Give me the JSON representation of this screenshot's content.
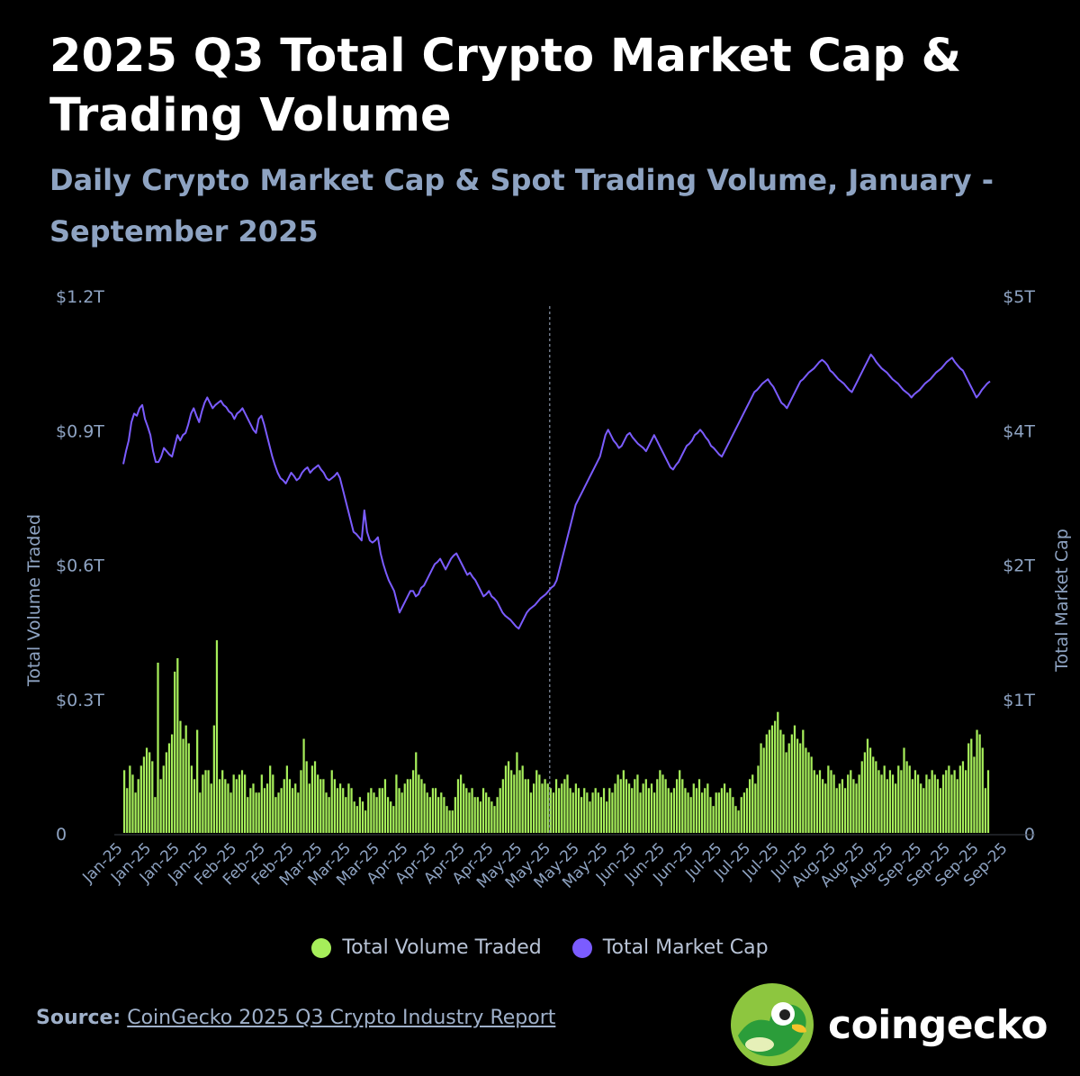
{
  "title": "2025 Q3 Total Crypto Market Cap & Trading Volume",
  "subtitle": "Daily Crypto Market Cap & Spot Trading Volume, January - September 2025",
  "source_label": "Source:",
  "source_text": "CoinGecko 2025 Q3 Crypto Industry Report",
  "brand": "coingecko",
  "colors": {
    "volume": "#a6ee5a",
    "market_cap": "#7b5cff",
    "axis_text": "#8ea3c2",
    "divider": "#8a96a8"
  },
  "chart_data": {
    "type": "bar+line",
    "x_tick_labels": [
      "Jan-25",
      "Jan-25",
      "Jan-25",
      "Jan-25",
      "Feb-25",
      "Feb-25",
      "Feb-25",
      "Mar-25",
      "Mar-25",
      "Mar-25",
      "Apr-25",
      "Apr-25",
      "Apr-25",
      "Apr-25",
      "May-25",
      "May-25",
      "May-25",
      "May-25",
      "Jun-25",
      "Jun-25",
      "Jun-25",
      "Jul-25",
      "Jul-25",
      "Jul-25",
      "Jul-25",
      "Aug-25",
      "Aug-25",
      "Aug-25",
      "Sep-25",
      "Sep-25",
      "Sep-25",
      "Sep-25"
    ],
    "y_left": {
      "label": "Total Volume Traded",
      "ticks": [
        "0",
        "$0.3T",
        "$0.6T",
        "$0.9T",
        "$1.2T"
      ],
      "range": [
        0,
        1.2
      ],
      "unit": "T USD"
    },
    "y_right": {
      "label": "Total Market Cap",
      "ticks": [
        "0",
        "$1T",
        "$2T",
        "$4T",
        "$5T"
      ],
      "range": [
        0,
        5
      ],
      "unit": "T USD"
    },
    "divider_label": "May-25",
    "legend": [
      "Total Volume Traded",
      "Total Market Cap"
    ],
    "series": [
      {
        "name": "Total Volume Traded",
        "type": "bar",
        "axis": "left",
        "values": [
          0.14,
          0.1,
          0.15,
          0.13,
          0.09,
          0.12,
          0.15,
          0.17,
          0.19,
          0.18,
          0.16,
          0.08,
          0.38,
          0.12,
          0.15,
          0.18,
          0.2,
          0.22,
          0.36,
          0.39,
          0.25,
          0.21,
          0.24,
          0.2,
          0.15,
          0.12,
          0.23,
          0.09,
          0.13,
          0.14,
          0.14,
          0.11,
          0.24,
          0.43,
          0.12,
          0.14,
          0.12,
          0.11,
          0.09,
          0.13,
          0.12,
          0.13,
          0.14,
          0.13,
          0.08,
          0.1,
          0.11,
          0.09,
          0.09,
          0.13,
          0.1,
          0.11,
          0.15,
          0.13,
          0.08,
          0.09,
          0.1,
          0.12,
          0.15,
          0.12,
          0.1,
          0.11,
          0.09,
          0.14,
          0.21,
          0.16,
          0.11,
          0.15,
          0.16,
          0.13,
          0.12,
          0.12,
          0.09,
          0.08,
          0.14,
          0.12,
          0.1,
          0.11,
          0.1,
          0.08,
          0.11,
          0.1,
          0.07,
          0.06,
          0.08,
          0.07,
          0.05,
          0.09,
          0.1,
          0.09,
          0.08,
          0.1,
          0.1,
          0.12,
          0.08,
          0.07,
          0.06,
          0.13,
          0.1,
          0.09,
          0.11,
          0.12,
          0.12,
          0.14,
          0.18,
          0.13,
          0.12,
          0.11,
          0.09,
          0.08,
          0.1,
          0.1,
          0.08,
          0.09,
          0.08,
          0.06,
          0.05,
          0.05,
          0.08,
          0.12,
          0.13,
          0.11,
          0.1,
          0.09,
          0.1,
          0.08,
          0.08,
          0.07,
          0.1,
          0.09,
          0.08,
          0.07,
          0.06,
          0.08,
          0.1,
          0.12,
          0.15,
          0.16,
          0.14,
          0.13,
          0.18,
          0.14,
          0.15,
          0.12,
          0.12,
          0.09,
          0.11,
          0.14,
          0.13,
          0.11,
          0.12,
          0.11,
          0.1,
          0.09,
          0.12,
          0.1,
          0.11,
          0.12,
          0.13,
          0.1,
          0.09,
          0.11,
          0.1,
          0.08,
          0.1,
          0.09,
          0.07,
          0.09,
          0.1,
          0.09,
          0.08,
          0.1,
          0.07,
          0.1,
          0.09,
          0.11,
          0.13,
          0.12,
          0.14,
          0.12,
          0.11,
          0.1,
          0.12,
          0.13,
          0.09,
          0.11,
          0.12,
          0.1,
          0.11,
          0.09,
          0.12,
          0.14,
          0.13,
          0.12,
          0.1,
          0.09,
          0.1,
          0.12,
          0.14,
          0.12,
          0.1,
          0.09,
          0.08,
          0.11,
          0.1,
          0.12,
          0.09,
          0.1,
          0.11,
          0.08,
          0.06,
          0.09,
          0.09,
          0.1,
          0.11,
          0.09,
          0.1,
          0.08,
          0.06,
          0.05,
          0.08,
          0.09,
          0.1,
          0.12,
          0.13,
          0.11,
          0.15,
          0.2,
          0.19,
          0.22,
          0.23,
          0.24,
          0.25,
          0.27,
          0.23,
          0.22,
          0.18,
          0.2,
          0.22,
          0.24,
          0.21,
          0.2,
          0.23,
          0.19,
          0.18,
          0.17,
          0.14,
          0.13,
          0.14,
          0.12,
          0.11,
          0.15,
          0.14,
          0.13,
          0.1,
          0.11,
          0.12,
          0.1,
          0.13,
          0.14,
          0.12,
          0.11,
          0.13,
          0.16,
          0.18,
          0.21,
          0.19,
          0.17,
          0.16,
          0.14,
          0.13,
          0.15,
          0.12,
          0.14,
          0.13,
          0.11,
          0.15,
          0.14,
          0.19,
          0.16,
          0.15,
          0.12,
          0.14,
          0.13,
          0.11,
          0.1,
          0.13,
          0.12,
          0.14,
          0.13,
          0.12,
          0.1,
          0.13,
          0.14,
          0.15,
          0.13,
          0.14,
          0.12,
          0.15,
          0.16,
          0.14,
          0.2,
          0.21,
          0.17,
          0.23,
          0.22,
          0.19,
          0.1,
          0.14
        ],
        "x_range": [
          "Jan-25",
          "Sep-25"
        ]
      },
      {
        "name": "Total Market Cap",
        "type": "line",
        "axis": "right",
        "values": [
          3.43,
          3.55,
          3.65,
          3.82,
          3.9,
          3.88,
          3.95,
          3.98,
          3.85,
          3.78,
          3.7,
          3.55,
          3.45,
          3.45,
          3.5,
          3.58,
          3.55,
          3.52,
          3.5,
          3.6,
          3.7,
          3.65,
          3.7,
          3.72,
          3.8,
          3.9,
          3.95,
          3.88,
          3.82,
          3.92,
          4.0,
          4.05,
          4.0,
          3.95,
          3.98,
          4.0,
          4.02,
          3.98,
          3.96,
          3.92,
          3.9,
          3.85,
          3.9,
          3.92,
          3.95,
          3.9,
          3.85,
          3.8,
          3.75,
          3.72,
          3.85,
          3.88,
          3.8,
          3.7,
          3.6,
          3.5,
          3.42,
          3.35,
          3.3,
          3.28,
          3.25,
          3.3,
          3.35,
          3.32,
          3.28,
          3.3,
          3.35,
          3.38,
          3.4,
          3.35,
          3.38,
          3.4,
          3.42,
          3.38,
          3.35,
          3.3,
          3.28,
          3.3,
          3.32,
          3.35,
          3.3,
          3.2,
          3.1,
          3.0,
          2.9,
          2.8,
          2.78,
          2.75,
          2.72,
          3.0,
          2.8,
          2.72,
          2.7,
          2.72,
          2.75,
          2.6,
          2.5,
          2.42,
          2.35,
          2.3,
          2.25,
          2.15,
          2.05,
          2.1,
          2.15,
          2.2,
          2.25,
          2.25,
          2.2,
          2.22,
          2.28,
          2.3,
          2.35,
          2.4,
          2.45,
          2.5,
          2.52,
          2.55,
          2.5,
          2.45,
          2.5,
          2.55,
          2.58,
          2.6,
          2.55,
          2.5,
          2.45,
          2.4,
          2.42,
          2.38,
          2.35,
          2.3,
          2.25,
          2.2,
          2.22,
          2.25,
          2.2,
          2.18,
          2.15,
          2.1,
          2.05,
          2.02,
          2.0,
          1.98,
          1.95,
          1.92,
          1.9,
          1.95,
          2.0,
          2.05,
          2.08,
          2.1,
          2.12,
          2.15,
          2.18,
          2.2,
          2.22,
          2.25,
          2.28,
          2.3,
          2.35,
          2.45,
          2.55,
          2.65,
          2.75,
          2.85,
          2.95,
          3.05,
          3.1,
          3.15,
          3.2,
          3.25,
          3.3,
          3.35,
          3.4,
          3.45,
          3.5,
          3.6,
          3.7,
          3.75,
          3.7,
          3.65,
          3.62,
          3.58,
          3.6,
          3.65,
          3.7,
          3.72,
          3.68,
          3.65,
          3.62,
          3.6,
          3.58,
          3.55,
          3.6,
          3.65,
          3.7,
          3.65,
          3.6,
          3.55,
          3.5,
          3.45,
          3.4,
          3.38,
          3.42,
          3.45,
          3.5,
          3.55,
          3.6,
          3.62,
          3.65,
          3.7,
          3.72,
          3.75,
          3.72,
          3.68,
          3.65,
          3.6,
          3.58,
          3.55,
          3.52,
          3.5,
          3.55,
          3.6,
          3.65,
          3.7,
          3.75,
          3.8,
          3.85,
          3.9,
          3.95,
          4.0,
          4.05,
          4.1,
          4.12,
          4.15,
          4.18,
          4.2,
          4.22,
          4.18,
          4.15,
          4.1,
          4.05,
          4.0,
          3.98,
          3.95,
          4.0,
          4.05,
          4.1,
          4.15,
          4.2,
          4.22,
          4.25,
          4.28,
          4.3,
          4.32,
          4.35,
          4.38,
          4.4,
          4.38,
          4.35,
          4.3,
          4.28,
          4.25,
          4.22,
          4.2,
          4.18,
          4.15,
          4.12,
          4.1,
          4.15,
          4.2,
          4.25,
          4.3,
          4.35,
          4.4,
          4.45,
          4.42,
          4.38,
          4.35,
          4.32,
          4.3,
          4.28,
          4.25,
          4.22,
          4.2,
          4.18,
          4.15,
          4.12,
          4.1,
          4.08,
          4.05,
          4.08,
          4.1,
          4.12,
          4.15,
          4.18,
          4.2,
          4.22,
          4.25,
          4.28,
          4.3,
          4.32,
          4.35,
          4.38,
          4.4,
          4.42,
          4.38,
          4.35,
          4.32,
          4.3,
          4.25,
          4.2,
          4.15,
          4.1,
          4.05,
          4.08,
          4.12,
          4.15,
          4.18,
          4.2
        ]
      }
    ]
  }
}
